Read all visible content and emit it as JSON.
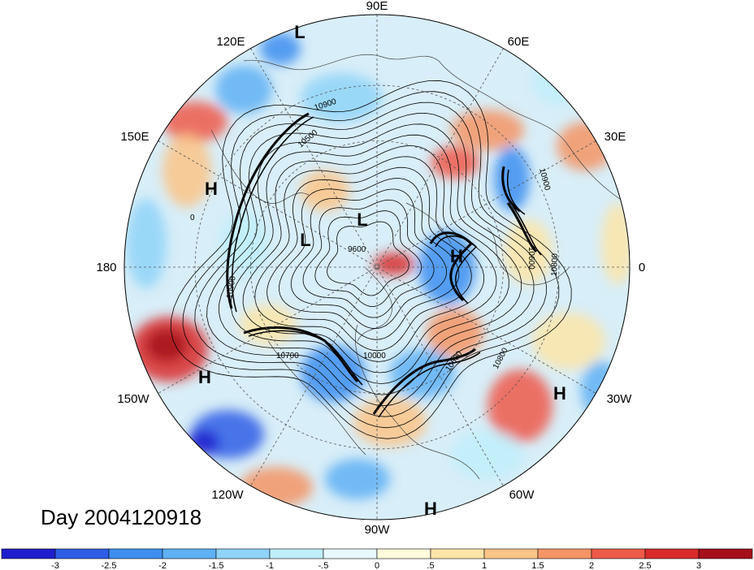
{
  "title": "Day 2004120918",
  "map": {
    "projection": "north-polar-stereographic",
    "longitude_labels": [
      "90E",
      "60E",
      "30E",
      "0",
      "30W",
      "60W",
      "90W",
      "120W",
      "150W",
      "180",
      "150E",
      "120E"
    ],
    "pressure_systems": [
      {
        "type": "L",
        "label": "L"
      },
      {
        "type": "L",
        "label": "L"
      },
      {
        "type": "L",
        "label": "L"
      },
      {
        "type": "H",
        "label": "H"
      },
      {
        "type": "H",
        "label": "H"
      },
      {
        "type": "H",
        "label": "H"
      },
      {
        "type": "H",
        "label": "H"
      },
      {
        "type": "H",
        "label": "H"
      }
    ],
    "contour_labels": [
      "10900",
      "10500",
      "0",
      "9600",
      "10700",
      "10000",
      "10600",
      "10800",
      "10900",
      "10600",
      "10800",
      "10900"
    ]
  },
  "colorbar": {
    "ticks": [
      "-3",
      "-2.5",
      "-2",
      "-1.5",
      "-1",
      "-.5",
      "0",
      ".5",
      "1",
      "1.5",
      "2",
      "2.5",
      "3"
    ],
    "colors": [
      "#1e1ecc",
      "#2e5ee6",
      "#3d8ef0",
      "#5fb0f5",
      "#8fd3f8",
      "#bfeefb",
      "#e8f9fd",
      "#fffbdc",
      "#fde5a8",
      "#fcc487",
      "#f59565",
      "#ee5a4a",
      "#d92a2a",
      "#a50f1a"
    ]
  },
  "style": {
    "water_color": "#cfe8f6",
    "frame_color": "#000000"
  }
}
